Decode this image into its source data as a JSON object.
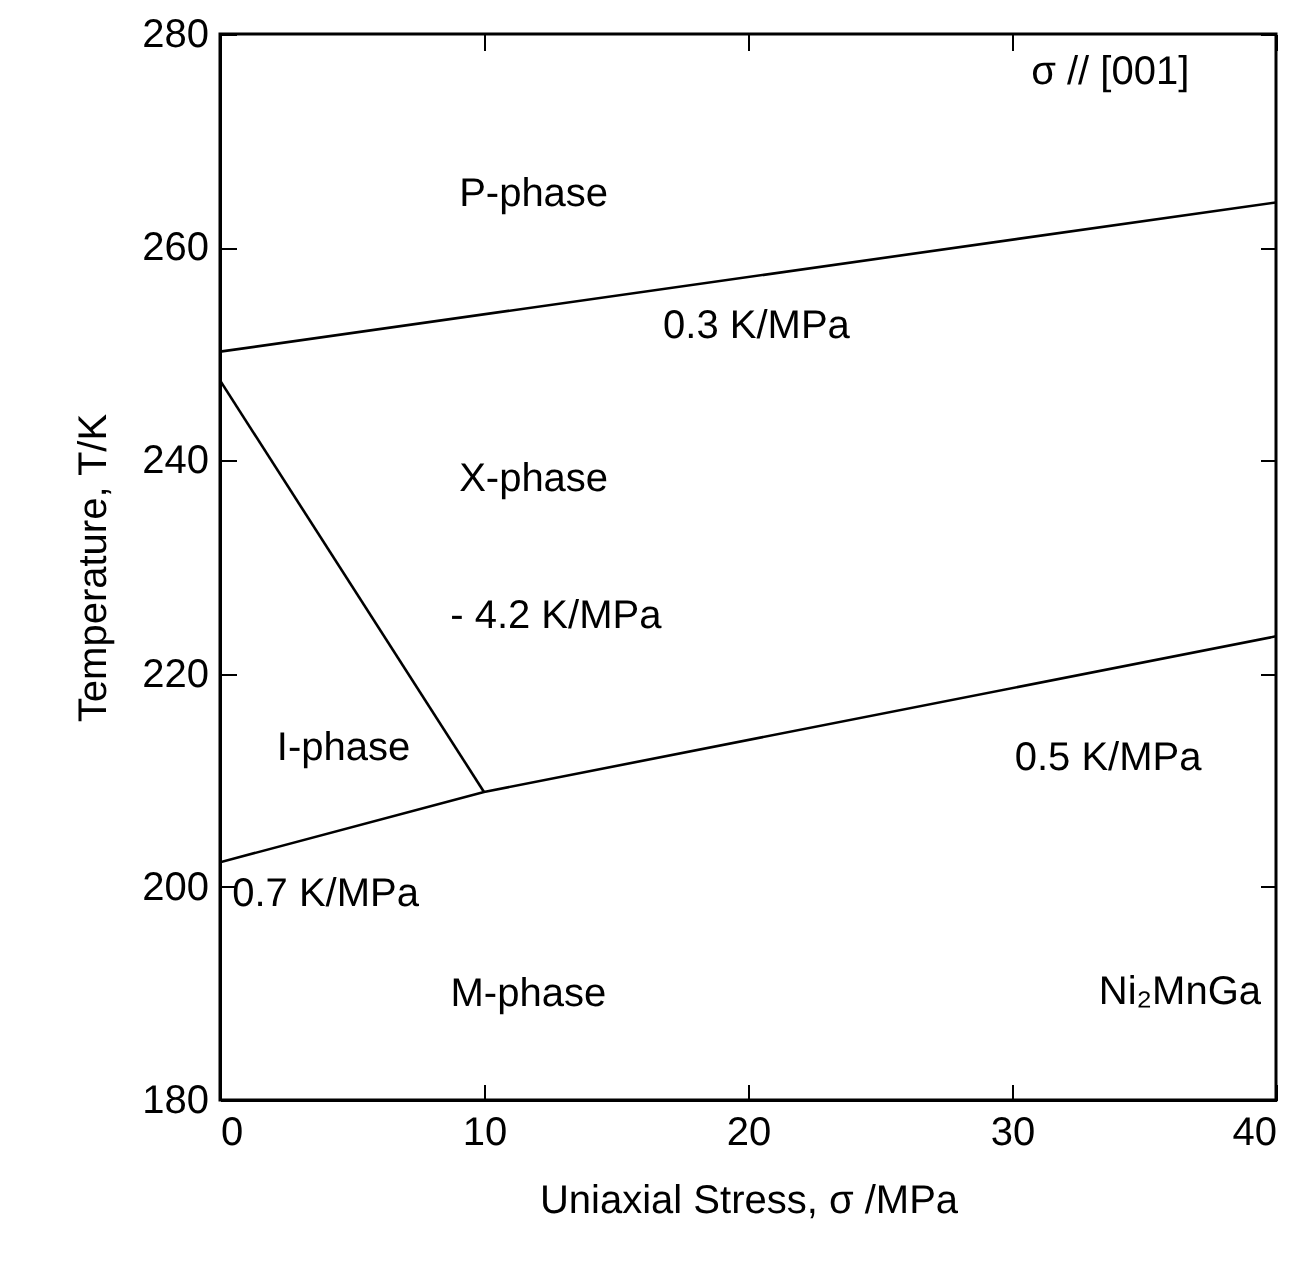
{
  "chart_data": {
    "type": "line",
    "xlabel": "Uniaxial Stress, σ /MPa",
    "ylabel": "Temperature, T/K",
    "xlim": [
      0,
      40
    ],
    "xticks": [
      0,
      10,
      20,
      30,
      40
    ],
    "ylim": [
      180,
      280
    ],
    "yticks": [
      180,
      200,
      220,
      240,
      260,
      280
    ],
    "series": [
      {
        "color": "#000000",
        "x": [
          0,
          40
        ],
        "values": [
          250.2,
          264.2
        ]
      },
      {
        "color": "#000000",
        "x": [
          0,
          10
        ],
        "values": [
          247.5,
          208.9
        ]
      },
      {
        "color": "#000000",
        "x": [
          0,
          10,
          40
        ],
        "values": [
          202.3,
          208.9,
          223.5
        ]
      }
    ],
    "annotations": [
      "σ // [001]",
      "P-phase",
      "0.3 K/MPa",
      "X-phase",
      "- 4.2 K/MPa",
      "I-phase",
      "0.5 K/MPa",
      "0.7 K/MPa",
      "M-phase",
      "Ni₂MnGa"
    ]
  }
}
